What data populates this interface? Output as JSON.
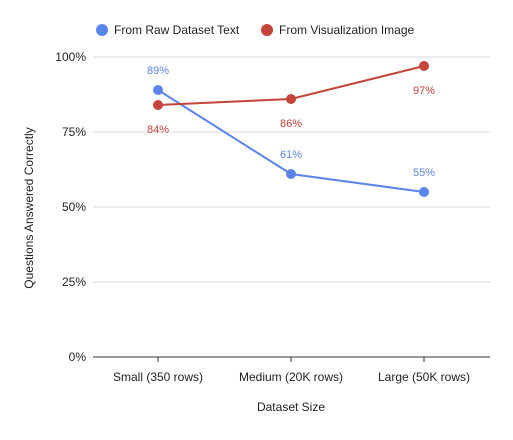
{
  "chart_data": {
    "type": "line",
    "title": "",
    "xlabel": "Dataset Size",
    "ylabel": "Questions Answered Correctly",
    "categories": [
      "Small (350 rows)",
      "Medium (20K rows)",
      "Large (50K rows)"
    ],
    "ylim": [
      0,
      100
    ],
    "y_ticks": [
      "0%",
      "25%",
      "50%",
      "75%",
      "100%"
    ],
    "y_tick_values": [
      0,
      25,
      50,
      75,
      100
    ],
    "grid": true,
    "legend_position": "top-left",
    "series": [
      {
        "name": "From Raw Dataset Text",
        "color": "#5b85ea",
        "values": [
          89,
          61,
          55
        ],
        "labels": [
          "89%",
          "61%",
          "55%"
        ],
        "label_placement": [
          "above",
          "above",
          "above"
        ]
      },
      {
        "name": "From Visualization Image",
        "color": "#c5443b",
        "values": [
          84,
          86,
          97
        ],
        "labels": [
          "84%",
          "86%",
          "97%"
        ],
        "label_placement": [
          "below",
          "below",
          "below"
        ]
      }
    ]
  }
}
